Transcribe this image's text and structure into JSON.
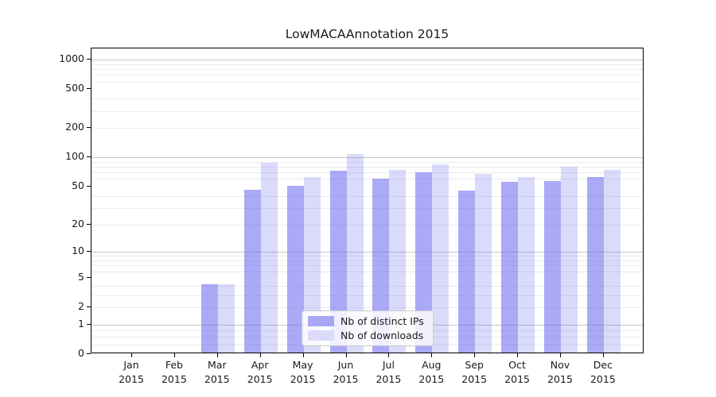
{
  "chart_data": {
    "type": "bar",
    "title": "LowMACAAnnotation 2015",
    "categories": [
      "Jan",
      "Feb",
      "Mar",
      "Apr",
      "May",
      "Jun",
      "Jul",
      "Aug",
      "Sep",
      "Oct",
      "Nov",
      "Dec"
    ],
    "x_tick_second_line": "2015",
    "xlabel": "",
    "ylabel": "",
    "yscale": "log1p",
    "ylim": [
      0,
      1300
    ],
    "yticks": [
      0,
      1,
      2,
      5,
      10,
      20,
      50,
      100,
      200,
      500,
      1000
    ],
    "major_gridline_values": [
      1,
      10,
      100,
      1000
    ],
    "minor_gridline_values": [
      0.25,
      0.5,
      0.75,
      2,
      3,
      4,
      6,
      7,
      8,
      9,
      20,
      30,
      40,
      60,
      70,
      80,
      90,
      200,
      300,
      400,
      600,
      700,
      800,
      900
    ],
    "grid": true,
    "legend_position": "lower center",
    "series": [
      {
        "name": "Nb of distinct IPs",
        "swatch_hex": "#a7a7f4",
        "values": [
          0,
          0,
          4,
          45,
          49,
          70,
          58,
          68,
          44,
          54,
          55,
          60
        ]
      },
      {
        "name": "Nb of downloads",
        "swatch_hex": "#dbdbf9",
        "values": [
          0,
          0,
          4,
          85,
          60,
          104,
          72,
          82,
          65,
          61,
          77,
          72
        ]
      }
    ],
    "colors": {
      "bar_dark": "#a8a8f6",
      "bar_light": "#dadaf8",
      "major_grid": "#c6c6c6",
      "minor_grid": "#ebebeb",
      "spine": "#000000",
      "text": "#1a1a1a"
    }
  }
}
